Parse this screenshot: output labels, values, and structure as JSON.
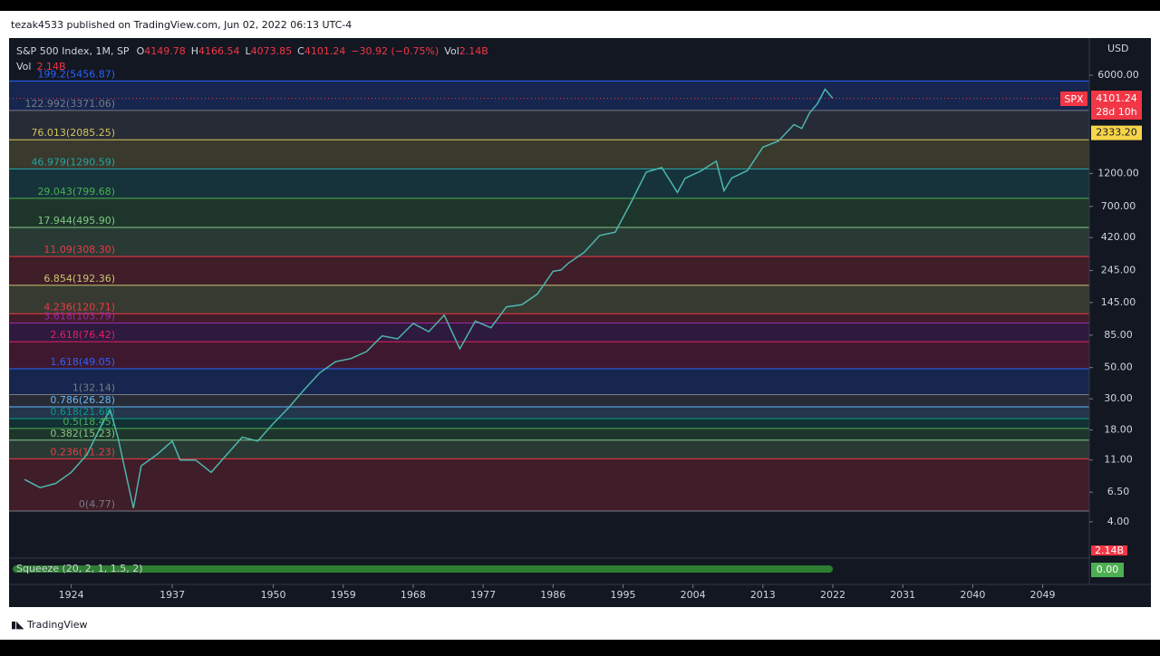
{
  "header": {
    "publisher": "tezak4533 published on TradingView.com, Jun 02, 2022 06:13 UTC-4"
  },
  "legend": {
    "symbol": "S&P 500 Index, 1M, SP",
    "open_key": "O",
    "open": "4149.78",
    "high_key": "H",
    "high": "4166.54",
    "low_key": "L",
    "low": "4073.85",
    "close_key": "C",
    "change": "−30.92 (−0.75%)",
    "vol_key": "Vol",
    "vol": "2.14B"
  },
  "chart_data": {
    "type": "line",
    "log_scale": true,
    "color": "#4db6ac",
    "x": [
      1918,
      1920,
      1922,
      1924,
      1926,
      1928,
      1929,
      1930,
      1932,
      1933,
      1935,
      1937,
      1938,
      1940,
      1942,
      1944,
      1946,
      1948,
      1950,
      1952,
      1954,
      1956,
      1958,
      1960,
      1962,
      1964,
      1966,
      1968,
      1970,
      1972,
      1974,
      1976,
      1978,
      1980,
      1982,
      1984,
      1986,
      1987,
      1988,
      1990,
      1992,
      1994,
      1996,
      1998,
      2000,
      2002,
      2003,
      2005,
      2007,
      2008,
      2009,
      2011,
      2013,
      2015,
      2017,
      2018,
      2019,
      2020,
      2021,
      2022
    ],
    "values": [
      8,
      7,
      7.5,
      9,
      12,
      20,
      25,
      16,
      5,
      10,
      12,
      15,
      11,
      11,
      9,
      12,
      16,
      15,
      20,
      26,
      35,
      46,
      55,
      58,
      65,
      84,
      80,
      103,
      90,
      118,
      68,
      107,
      96,
      135,
      140,
      167,
      242,
      247,
      277,
      330,
      435,
      459,
      740,
      1229,
      1320,
      880,
      1111,
      1248,
      1468,
      903,
      1115,
      1257,
      1848,
      2044,
      2673,
      2507,
      3230,
      3756,
      4766,
      4101.24
    ],
    "xlim": [
      1916,
      2055
    ],
    "xticks": [
      1924,
      1937,
      1950,
      1959,
      1968,
      1977,
      1986,
      1995,
      2004,
      2013,
      2022,
      2031,
      2040,
      2049
    ],
    "ylim": [
      2.24,
      11020
    ],
    "yticks": [
      {
        "value": 6000,
        "label": "6000.00"
      },
      {
        "value": 1200,
        "label": "1200.00"
      },
      {
        "value": 700,
        "label": "700.00"
      },
      {
        "value": 420,
        "label": "420.00"
      },
      {
        "value": 245,
        "label": "245.00"
      },
      {
        "value": 145,
        "label": "145.00"
      },
      {
        "value": 85,
        "label": "85.00"
      },
      {
        "value": 50,
        "label": "50.00"
      },
      {
        "value": 30,
        "label": "30.00"
      },
      {
        "value": 18,
        "label": "18.00"
      },
      {
        "value": 11,
        "label": "11.00"
      },
      {
        "value": 6.5,
        "label": "6.50"
      },
      {
        "value": 4,
        "label": "4.00"
      }
    ],
    "currency": "USD",
    "symbol_tag": "SPX",
    "countdown": "28d 10h",
    "price_tag": {
      "value": 2333.2,
      "label": "2333.20"
    },
    "fib_levels": [
      {
        "value": 5456.87,
        "label": "199.2(5456.87)",
        "color": "#2962ff"
      },
      {
        "value": 3371.06,
        "label": "122.992(3371.06)",
        "color": "#787b86"
      },
      {
        "value": 2085.25,
        "label": "76.013(2085.25)",
        "color": "#d4c55a"
      },
      {
        "value": 1290.59,
        "label": "46.979(1290.59)",
        "color": "#22a5a5"
      },
      {
        "value": 799.68,
        "label": "29.043(799.68)",
        "color": "#4caf50"
      },
      {
        "value": 495.9,
        "label": "17.944(495.90)",
        "color": "#81c784"
      },
      {
        "value": 308.3,
        "label": "11.09(308.30)",
        "color": "#f23645"
      },
      {
        "value": 192.36,
        "label": "6.854(192.36)",
        "color": "#c8c86e"
      },
      {
        "value": 120.71,
        "label": "4.236(120.71)",
        "color": "#f23645"
      },
      {
        "value": 103.79,
        "label": "3.618(103.79)",
        "color": "#9c27b0"
      },
      {
        "value": 76.42,
        "label": "2.618(76.42)",
        "color": "#e91e63"
      },
      {
        "value": 49.05,
        "label": "1.618(49.05)",
        "color": "#2962ff"
      },
      {
        "value": 32.14,
        "label": "1(32.14)",
        "color": "#787b86"
      },
      {
        "value": 26.28,
        "label": "0.786(26.28)",
        "color": "#64b5f6"
      },
      {
        "value": 21.68,
        "label": "0.618(21.68)",
        "color": "#089981"
      },
      {
        "value": 18.45,
        "label": "0.5(18.45)",
        "color": "#4caf50"
      },
      {
        "value": 15.23,
        "label": "0.382(15.23)",
        "color": "#81c784"
      },
      {
        "value": 11.23,
        "label": "0.236(11.23)",
        "color": "#f23645"
      },
      {
        "value": 4.77,
        "label": "0(4.77)",
        "color": "#787b86"
      }
    ],
    "indicator": {
      "name": "Squeeze (20, 2, 1, 1.5, 2)",
      "value": "0.00"
    }
  },
  "footer": {
    "brand": "TradingView"
  }
}
